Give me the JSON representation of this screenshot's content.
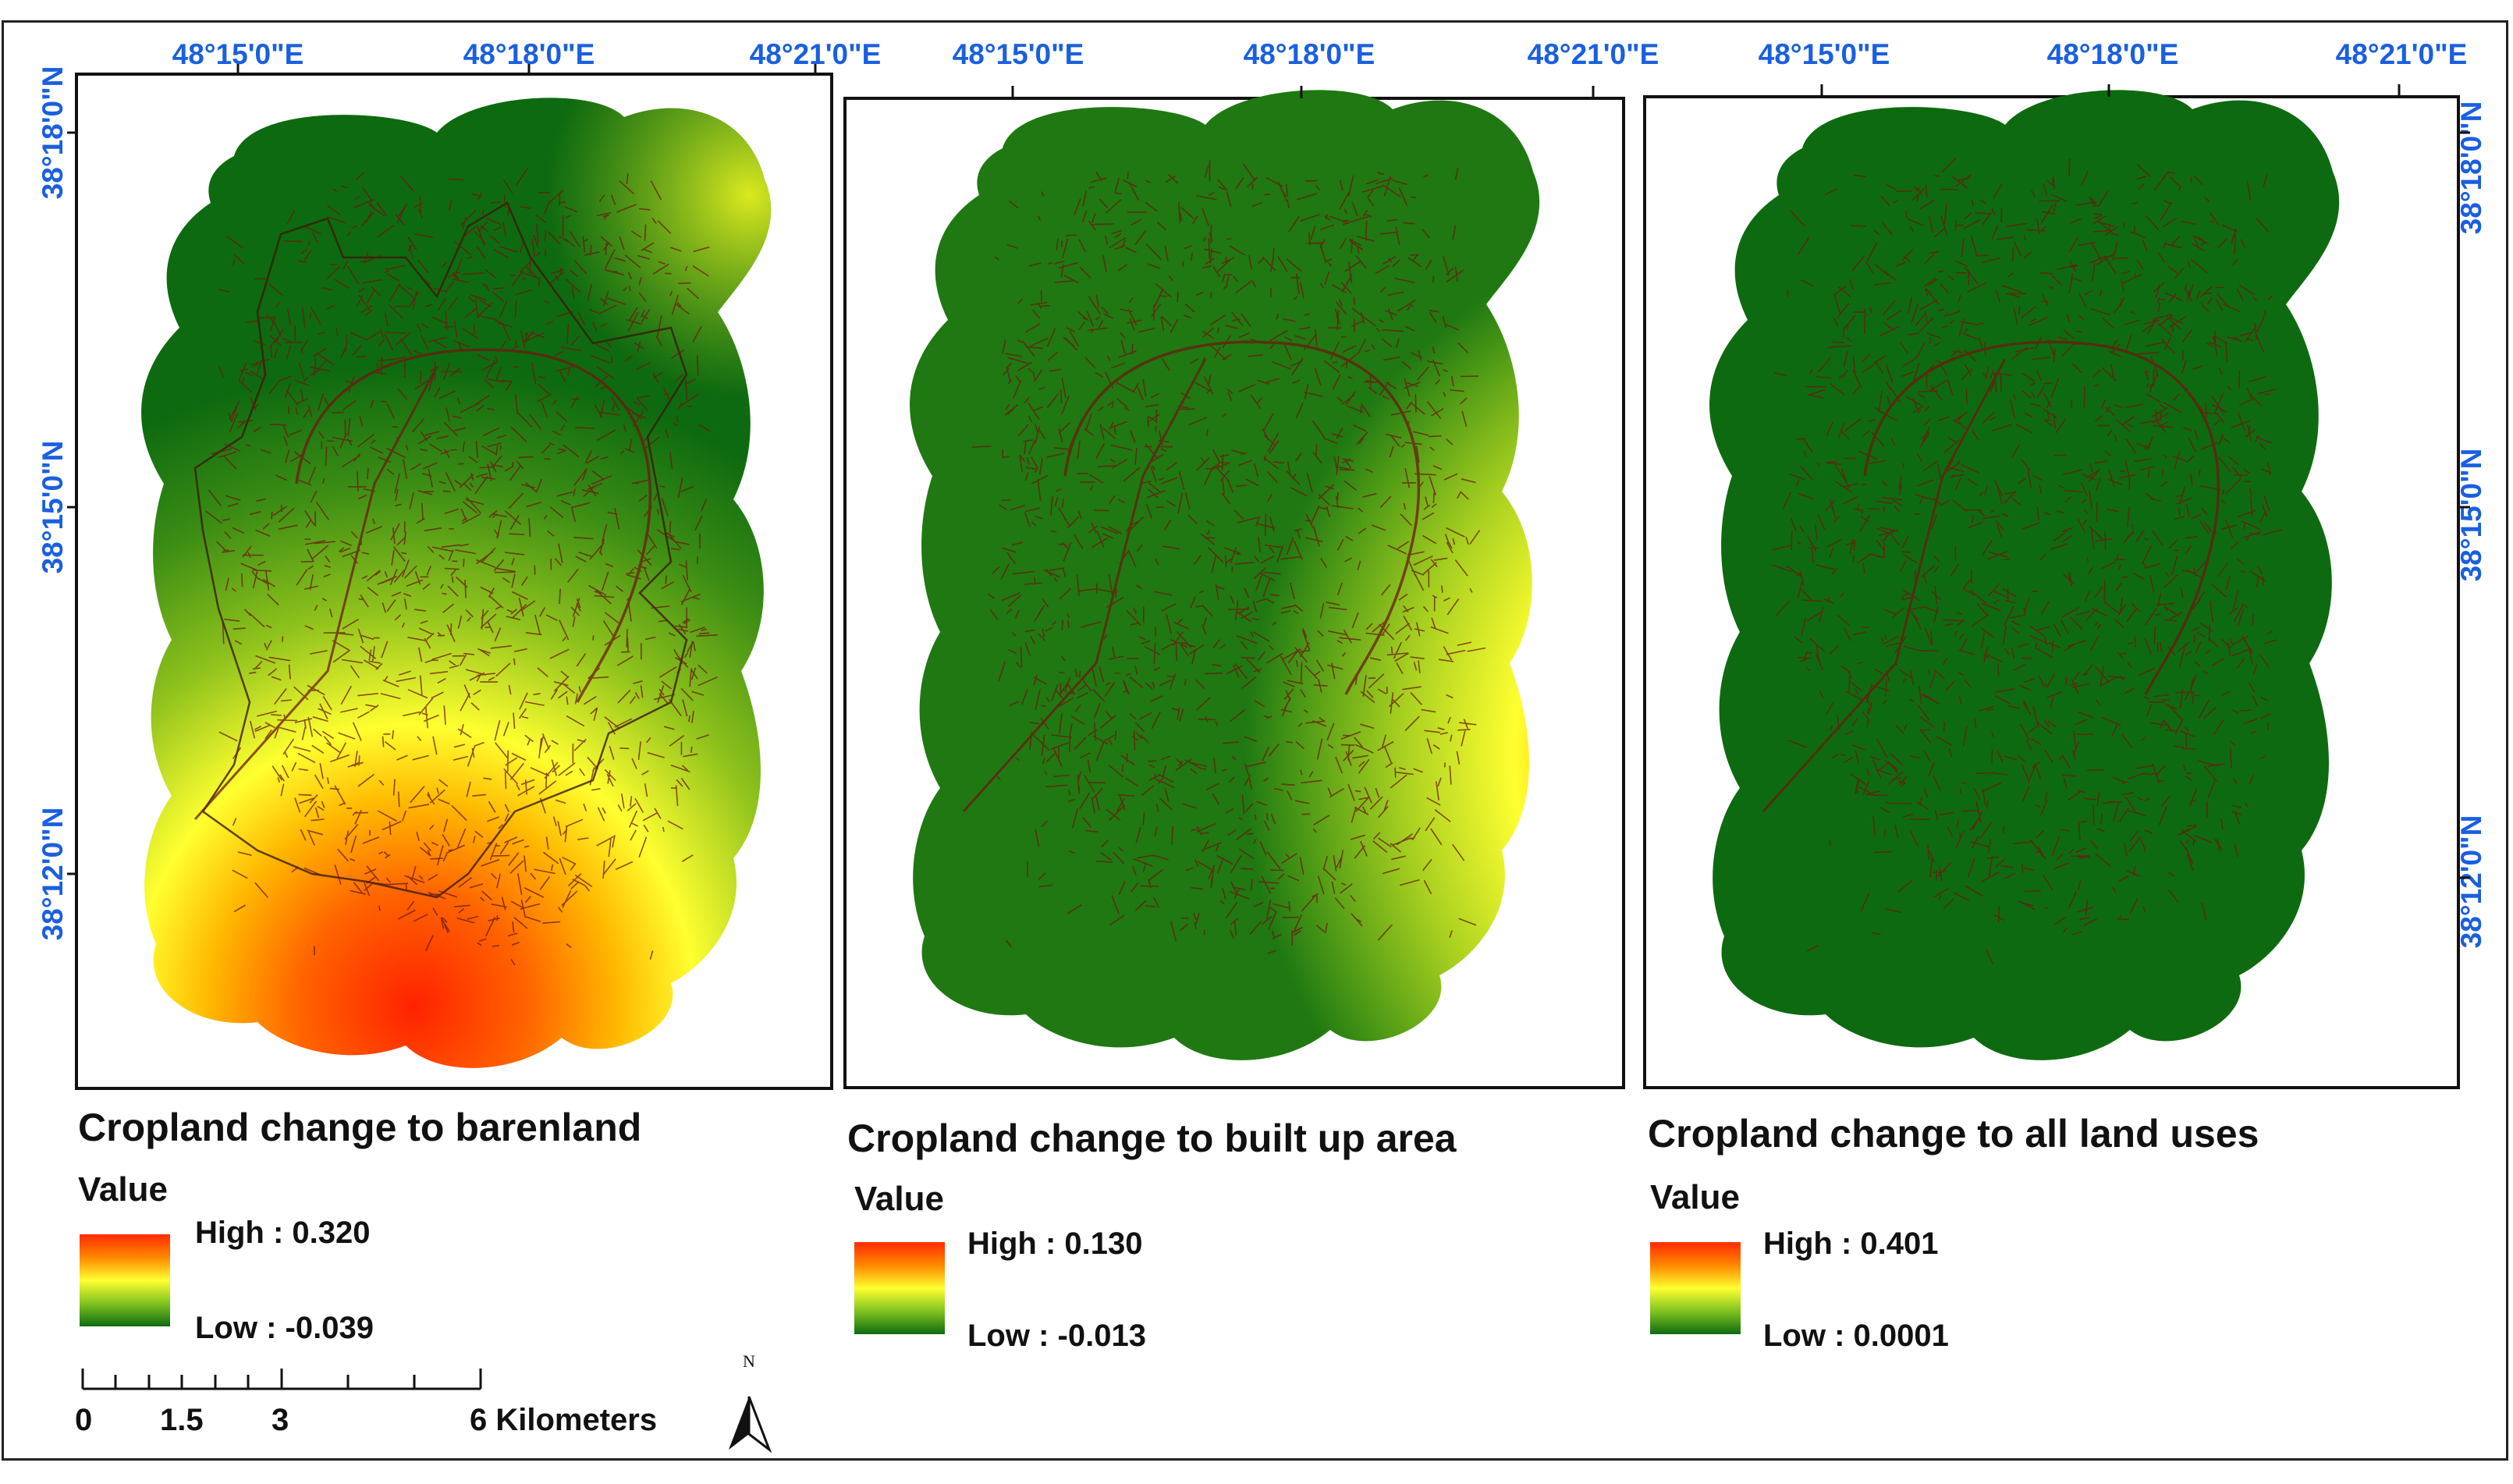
{
  "colors": {
    "high": "#ff2a00",
    "mid": "#ffff30",
    "low": "#0e6a10",
    "road": "#6b1a10",
    "label": "#1a5fe0"
  },
  "graticule": {
    "lon": [
      "48°15'0\"E",
      "48°18'0\"E",
      "48°21'0\"E"
    ],
    "lat": [
      "38°18'0\"N",
      "38°15'0\"N",
      "38°12'0\"N"
    ]
  },
  "panels": [
    {
      "title": "Cropland change to barenland",
      "value_label": "Value",
      "high_label": "High : 0.320",
      "low_label": "Low : -0.039",
      "high": 0.32,
      "low": -0.039
    },
    {
      "title": "Cropland change to built up area",
      "value_label": "Value",
      "high_label": "High : 0.130",
      "low_label": "Low : -0.013",
      "high": 0.13,
      "low": -0.013
    },
    {
      "title": "Cropland change to all land uses",
      "value_label": "Value",
      "high_label": "High : 0.401",
      "low_label": "Low : 0.0001",
      "high": 0.401,
      "low": 0.0001
    }
  ],
  "scale": {
    "ticks": [
      "0",
      "1.5",
      "3",
      "6 Kilometers"
    ]
  },
  "north_arrow": {
    "label": "N"
  }
}
